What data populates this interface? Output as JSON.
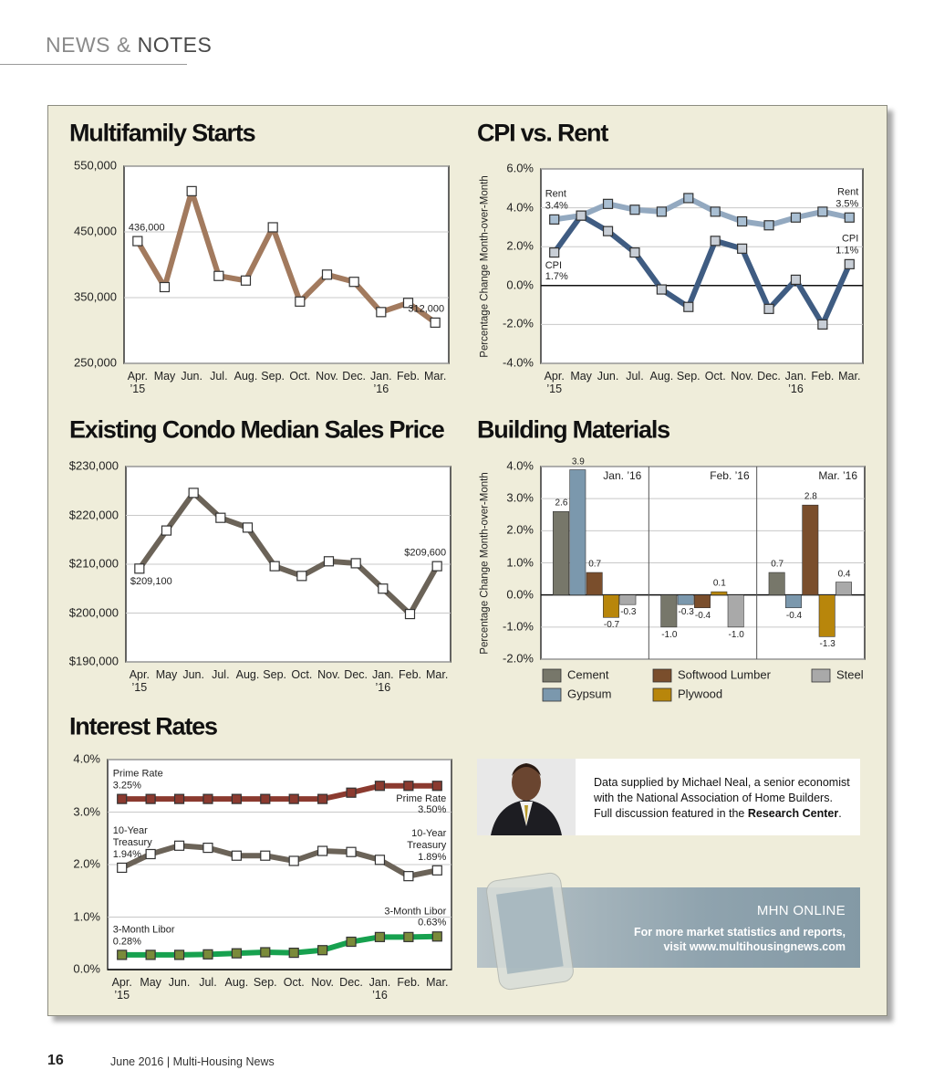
{
  "header": {
    "section": "NEWS &",
    "subsection": "NOTES"
  },
  "chart_data": [
    {
      "type": "line",
      "title": "Multifamily Starts",
      "categories": [
        "Apr.\n’15",
        "May",
        "Jun.",
        "Jul.",
        "Aug.",
        "Sep.",
        "Oct.",
        "Nov.",
        "Dec.",
        "Jan.\n’16",
        "Feb.",
        "Mar."
      ],
      "values": [
        436000,
        366000,
        512000,
        383000,
        376000,
        457000,
        344000,
        385000,
        374000,
        328000,
        342000,
        312000
      ],
      "value_labels": [
        "436,000",
        null,
        null,
        null,
        null,
        null,
        null,
        null,
        null,
        null,
        null,
        "312,000"
      ],
      "color": "#a27a5e",
      "marker_color": "#ffffff",
      "ylim": [
        250000,
        550000
      ],
      "yticks": [
        {
          "value": 250000,
          "label": "250,000"
        },
        {
          "value": 350000,
          "label": "350,000"
        },
        {
          "value": 450000,
          "label": "450,000"
        },
        {
          "value": 550000,
          "label": "550,000"
        }
      ],
      "grid": true
    },
    {
      "type": "line",
      "title": "CPI vs. Rent",
      "ylabel": "Percentage Change Month-over-Month",
      "categories": [
        "Apr.\n’15",
        "May",
        "Jun.",
        "Jul.",
        "Aug.",
        "Sep.",
        "Oct.",
        "Nov.",
        "Dec.",
        "Jan.\n’16",
        "Feb.",
        "Mar."
      ],
      "series": [
        {
          "name": "Rent",
          "color": "#93a9c0",
          "marker_color": "#a9bfd3",
          "values": [
            3.4,
            3.6,
            4.2,
            3.9,
            3.8,
            4.5,
            3.8,
            3.3,
            3.1,
            3.5,
            3.8,
            3.5
          ],
          "value_labels": [
            "Rent\n3.4%",
            null,
            null,
            null,
            null,
            null,
            null,
            null,
            null,
            null,
            null,
            "Rent\n3.5%"
          ]
        },
        {
          "name": "CPI",
          "color": "#3f5c82",
          "marker_color": "#c8ced6",
          "values": [
            1.7,
            3.6,
            2.8,
            1.7,
            -0.2,
            -1.1,
            2.3,
            1.9,
            -1.2,
            0.3,
            -2.0,
            1.1
          ],
          "value_labels": [
            "CPI\n1.7%",
            null,
            null,
            null,
            null,
            null,
            null,
            null,
            null,
            null,
            null,
            "CPI\n1.1%"
          ]
        }
      ],
      "ylim": [
        -4,
        6
      ],
      "yticks": [
        {
          "value": -4,
          "label": "-4.0%"
        },
        {
          "value": -2,
          "label": "-2.0%"
        },
        {
          "value": 0,
          "label": "0.0%"
        },
        {
          "value": 2,
          "label": "2.0%"
        },
        {
          "value": 4,
          "label": "4.0%"
        },
        {
          "value": 6,
          "label": "6.0%"
        }
      ],
      "grid": true
    },
    {
      "type": "line",
      "title": "Existing Condo Median Sales Price",
      "categories": [
        "Apr.\n’15",
        "May",
        "Jun.",
        "Jul.",
        "Aug.",
        "Sep.",
        "Oct.",
        "Nov.",
        "Dec.",
        "Jan.\n’16",
        "Feb.",
        "Mar."
      ],
      "values": [
        209100,
        216900,
        224600,
        219500,
        217500,
        209600,
        207600,
        210600,
        210200,
        205000,
        199800,
        209600
      ],
      "value_labels": [
        "$209,100",
        null,
        null,
        null,
        null,
        null,
        null,
        null,
        null,
        null,
        null,
        "$209,600"
      ],
      "color": "#6b6358",
      "marker_color": "#ffffff",
      "ylim": [
        190000,
        230000
      ],
      "yticks": [
        {
          "value": 190000,
          "label": "$190,000"
        },
        {
          "value": 200000,
          "label": "$200,000"
        },
        {
          "value": 210000,
          "label": "$210,000"
        },
        {
          "value": 220000,
          "label": "$220,000"
        },
        {
          "value": 230000,
          "label": "$230,000"
        }
      ],
      "grid": true
    },
    {
      "type": "bar",
      "title": "Building Materials",
      "ylabel": "Percentage Change Month-over-Month",
      "categories": [
        "Jan. ’16",
        "Feb. ’16",
        "Mar. ’16"
      ],
      "series": [
        {
          "name": "Cement",
          "color": "#77776a",
          "values": [
            2.6,
            -1.0,
            0.7
          ],
          "value_labels": [
            "2.6",
            "-1.0",
            "0.7"
          ]
        },
        {
          "name": "Gypsum",
          "color": "#7b98ad",
          "values": [
            3.9,
            -0.3,
            -0.4
          ],
          "value_labels": [
            "3.9",
            "-0.3",
            "-0.4"
          ]
        },
        {
          "name": "Softwood Lumber",
          "color": "#7a4e2c",
          "values": [
            0.7,
            -0.4,
            2.8
          ],
          "value_labels": [
            "0.7",
            "-0.4",
            "2.8"
          ]
        },
        {
          "name": "Plywood",
          "color": "#b8860b",
          "values": [
            -0.7,
            0.1,
            -1.3
          ],
          "value_labels": [
            "-0.7",
            "0.1",
            "-1.3"
          ]
        },
        {
          "name": "Steel",
          "color": "#a9a9a9",
          "values": [
            -0.3,
            -1.0,
            0.4
          ],
          "value_labels": [
            "-0.3",
            "-1.0",
            "0.4"
          ]
        }
      ],
      "ylim": [
        -2,
        4
      ],
      "yticks": [
        {
          "value": -2,
          "label": "-2.0%"
        },
        {
          "value": -1,
          "label": "-1.0%"
        },
        {
          "value": 0,
          "label": "0.0%"
        },
        {
          "value": 1,
          "label": "1.0%"
        },
        {
          "value": 2,
          "label": "2.0%"
        },
        {
          "value": 3,
          "label": "3.0%"
        },
        {
          "value": 4,
          "label": "4.0%"
        }
      ],
      "grid": true
    },
    {
      "type": "line",
      "title": "Interest Rates",
      "categories": [
        "Apr.\n’15",
        "May",
        "Jun.",
        "Jul.",
        "Aug.",
        "Sep.",
        "Oct.",
        "Nov.",
        "Dec.",
        "Jan.\n’16",
        "Feb.",
        "Mar."
      ],
      "series": [
        {
          "name": "Prime Rate",
          "color": "#8b3a2f",
          "marker_color": "#8b3a2f",
          "values": [
            3.25,
            3.25,
            3.25,
            3.25,
            3.25,
            3.25,
            3.25,
            3.25,
            3.37,
            3.5,
            3.5,
            3.5
          ],
          "value_labels": [
            "Prime Rate\n3.25%",
            null,
            null,
            null,
            null,
            null,
            null,
            null,
            null,
            null,
            null,
            "Prime Rate\n3.50%"
          ]
        },
        {
          "name": "10-Year Treasury",
          "color": "#6b6358",
          "marker_color": "#ffffff",
          "values": [
            1.94,
            2.2,
            2.36,
            2.32,
            2.17,
            2.17,
            2.07,
            2.26,
            2.24,
            2.09,
            1.78,
            1.89
          ],
          "value_labels": [
            "10-Year\nTreasury\n1.94%",
            null,
            null,
            null,
            null,
            null,
            null,
            null,
            null,
            null,
            null,
            "10-Year\nTreasury\n1.89%"
          ]
        },
        {
          "name": "3-Month Libor",
          "color": "#17a14f",
          "marker_color": "#7a8a3a",
          "values": [
            0.28,
            0.28,
            0.28,
            0.29,
            0.31,
            0.33,
            0.32,
            0.37,
            0.53,
            0.62,
            0.62,
            0.63
          ],
          "value_labels": [
            "3-Month Libor\n0.28%",
            null,
            null,
            null,
            null,
            null,
            null,
            null,
            null,
            null,
            null,
            "3-Month Libor\n0.63%"
          ]
        }
      ],
      "ylim": [
        0,
        4
      ],
      "yticks": [
        {
          "value": 0,
          "label": "0.0%"
        },
        {
          "value": 1,
          "label": "1.0%"
        },
        {
          "value": 2,
          "label": "2.0%"
        },
        {
          "value": 3,
          "label": "3.0%"
        },
        {
          "value": 4,
          "label": "4.0%"
        }
      ],
      "grid": true
    }
  ],
  "info": {
    "text": "Data supplied by Michael Neal, a senior economist with the National Association of Home Builders. Full discussion featured in the ",
    "bold": "Research Center",
    "end": "."
  },
  "promo": {
    "title": "MHN ONLINE",
    "text": "For more market statistics and reports,\nvisit www.multihousingnews.com"
  },
  "footer": {
    "page": "16",
    "issue": "June 2016 | Multi-Housing News"
  }
}
